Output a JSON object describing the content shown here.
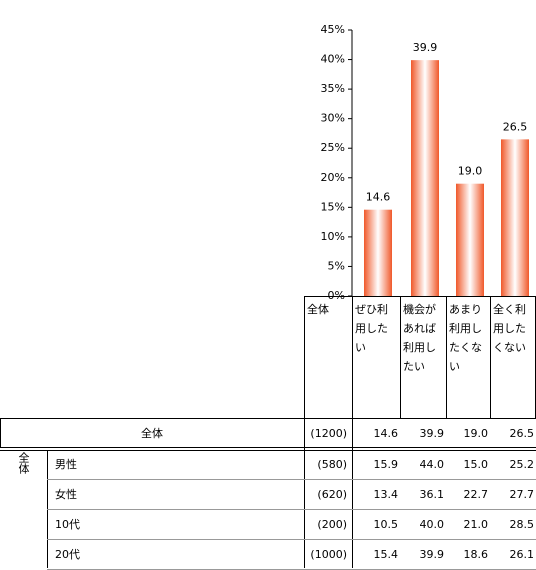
{
  "chart_data": {
    "type": "bar",
    "categories": [
      "ぜひ利用したい",
      "機会があれば利用したい",
      "あまり利用したくない",
      "全く利用したくない"
    ],
    "values": [
      14.6,
      39.9,
      19.0,
      26.5
    ],
    "value_labels": [
      "14.6",
      "39.9",
      "19.0",
      "26.5"
    ],
    "color": "#f0582a",
    "ylim": [
      0,
      45
    ],
    "yticks": [
      {
        "value": 0,
        "label": "0%"
      },
      {
        "value": 5,
        "label": "5%"
      },
      {
        "value": 10,
        "label": "10%"
      },
      {
        "value": 15,
        "label": "15%"
      },
      {
        "value": 20,
        "label": "20%"
      },
      {
        "value": 25,
        "label": "25%"
      },
      {
        "value": 30,
        "label": "30%"
      },
      {
        "value": 35,
        "label": "35%"
      },
      {
        "value": 40,
        "label": "40%"
      },
      {
        "value": 45,
        "label": "45%"
      }
    ],
    "grid": false
  },
  "table": {
    "header": "全体",
    "group": "全体",
    "total": {
      "label": "全体",
      "n": "(1200)",
      "values": [
        "14.6",
        "39.9",
        "19.0",
        "26.5"
      ]
    },
    "rows": [
      {
        "label": "男性",
        "n": "(580)",
        "values": [
          "15.9",
          "44.0",
          "15.0",
          "25.2"
        ]
      },
      {
        "label": "女性",
        "n": "(620)",
        "values": [
          "13.4",
          "36.1",
          "22.7",
          "27.7"
        ]
      },
      {
        "label": "10代",
        "n": "(200)",
        "values": [
          "10.5",
          "40.0",
          "21.0",
          "28.5"
        ]
      },
      {
        "label": "20代",
        "n": "(1000)",
        "values": [
          "15.4",
          "39.9",
          "18.6",
          "26.1"
        ]
      }
    ]
  }
}
